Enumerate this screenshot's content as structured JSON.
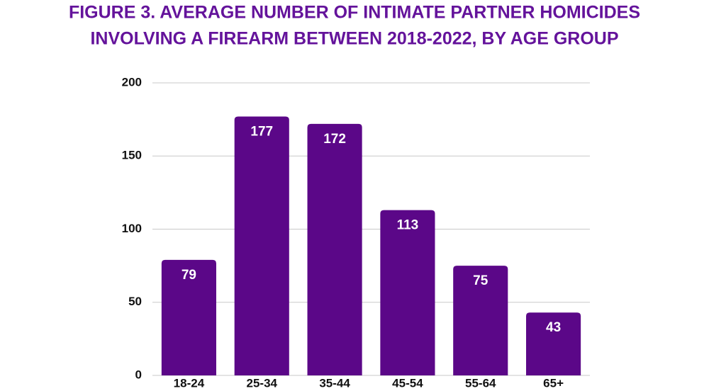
{
  "chart_data": {
    "type": "bar",
    "title": [
      "FIGURE 3. AVERAGE NUMBER OF INTIMATE PARTNER HOMICIDES",
      "INVOLVING A FIREARM BETWEEN 2018-2022, BY AGE GROUP"
    ],
    "categories": [
      "18-24",
      "25-34",
      "35-44",
      "45-54",
      "55-64",
      "65+"
    ],
    "values": [
      79,
      177,
      172,
      113,
      75,
      43
    ],
    "color": "#5b0788",
    "title_color": "#64139b",
    "ylim": [
      0,
      200
    ],
    "yticks": [
      0,
      50,
      100,
      150,
      200
    ],
    "grid": true
  }
}
